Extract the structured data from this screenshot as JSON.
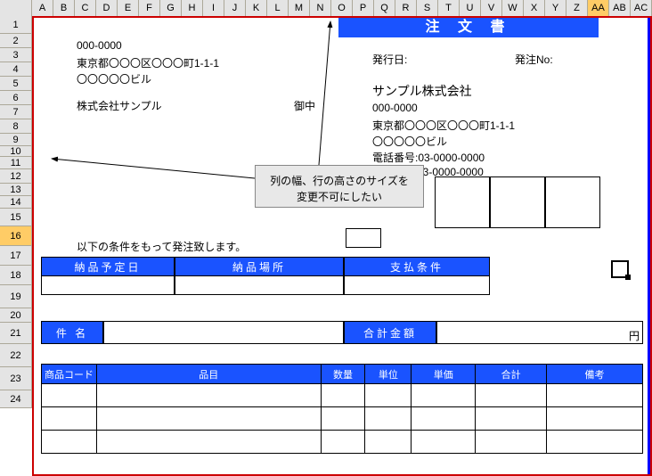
{
  "columns": [
    "A",
    "B",
    "C",
    "D",
    "E",
    "F",
    "G",
    "H",
    "I",
    "J",
    "K",
    "L",
    "M",
    "N",
    "O",
    "P",
    "Q",
    "R",
    "S",
    "T",
    "U",
    "V",
    "W",
    "X",
    "Y",
    "Z",
    "AA",
    "AB",
    "AC"
  ],
  "selected_col": "AA",
  "rows": [
    {
      "n": "1",
      "h": 20
    },
    {
      "n": "2",
      "h": 16
    },
    {
      "n": "3",
      "h": 16
    },
    {
      "n": "4",
      "h": 16
    },
    {
      "n": "5",
      "h": 16
    },
    {
      "n": "6",
      "h": 16
    },
    {
      "n": "7",
      "h": 16
    },
    {
      "n": "8",
      "h": 16
    },
    {
      "n": "9",
      "h": 14
    },
    {
      "n": "10",
      "h": 12
    },
    {
      "n": "11",
      "h": 14
    },
    {
      "n": "12",
      "h": 16
    },
    {
      "n": "13",
      "h": 14
    },
    {
      "n": "14",
      "h": 14
    },
    {
      "n": "15",
      "h": 20
    },
    {
      "n": "16",
      "h": 22
    },
    {
      "n": "17",
      "h": 22
    },
    {
      "n": "18",
      "h": 22
    },
    {
      "n": "19",
      "h": 26
    },
    {
      "n": "20",
      "h": 16
    },
    {
      "n": "21",
      "h": 24
    },
    {
      "n": "22",
      "h": 26
    },
    {
      "n": "23",
      "h": 26
    },
    {
      "n": "24",
      "h": 20
    }
  ],
  "selected_row": "16",
  "title": "注 文 書",
  "sender": {
    "postal": "000-0000",
    "address": "東京都〇〇〇区〇〇〇町1-1-1",
    "building": "〇〇〇〇〇ビル",
    "company": "株式会社サンプル",
    "attn": "御中"
  },
  "recipient": {
    "issue_label": "発行日:",
    "order_no_label": "発注No:",
    "company": "サンプル株式会社",
    "postal": "000-0000",
    "address": "東京都〇〇〇区〇〇〇町1-1-1",
    "building": "〇〇〇〇〇ビル",
    "tel": "電話番号:03-0000-0000",
    "fax": "FAX番号:03-0000-0000"
  },
  "callout": {
    "line1": "列の幅、行の高さのサイズを",
    "line2": "変更不可にしたい"
  },
  "order_text": "以下の条件をもって発注致します。",
  "headers1": {
    "delivery_date": "納品予定日",
    "delivery_place": "納品場所",
    "payment": "支払条件"
  },
  "headers2": {
    "subject": "件 名",
    "total": "合計金額",
    "yen": "円"
  },
  "table_cols": {
    "code": "商品コード",
    "item": "品目",
    "qty": "数量",
    "unit": "単位",
    "price": "単価",
    "sum": "合計",
    "note": "備考"
  },
  "colors": {
    "blue": "#1a53ff",
    "header_bg": "#e4e4e4",
    "sel_bg": "#ffcc66",
    "frame": "#cc0000"
  }
}
